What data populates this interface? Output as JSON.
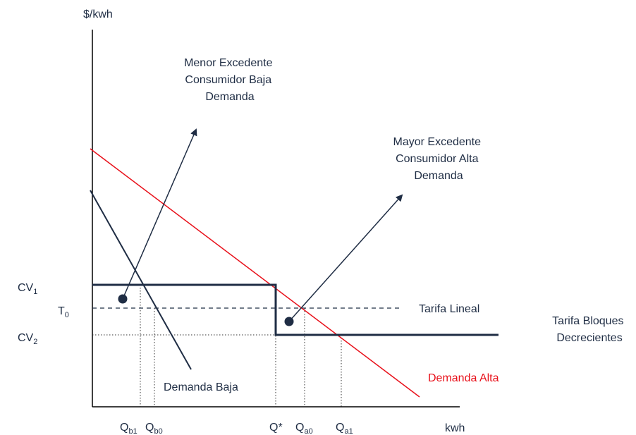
{
  "axes": {
    "y_label": "$/kwh",
    "x_label": "kwh"
  },
  "price_levels": {
    "cv1": {
      "base": "CV",
      "sub": "1"
    },
    "t0": {
      "base": "T",
      "sub": "0"
    },
    "cv2": {
      "base": "CV",
      "sub": "2"
    }
  },
  "quantities": {
    "qb1": {
      "base": "Q",
      "sub": "b1"
    },
    "qb0": {
      "base": "Q",
      "sub": "b0"
    },
    "qstar": {
      "base": "Q*",
      "sub": ""
    },
    "qa0": {
      "base": "Q",
      "sub": "a0"
    },
    "qa1": {
      "base": "Q",
      "sub": "a1"
    }
  },
  "curves": {
    "demanda_baja": "Demanda Baja",
    "demanda_alta": "Demanda Alta",
    "tarifa_lineal": "Tarifa Lineal",
    "tarifa_bloques": [
      "Tarifa Bloques",
      "Decrecientes"
    ]
  },
  "annotations": {
    "menor_excedente": [
      "Menor Excedente",
      "Consumidor Baja",
      "Demanda"
    ],
    "mayor_excedente": [
      "Mayor Excedente",
      "Consumidor Alta",
      "Demanda"
    ]
  },
  "colors": {
    "axis": "#000000",
    "navy": "#1f2d44",
    "red": "#e8101a"
  }
}
